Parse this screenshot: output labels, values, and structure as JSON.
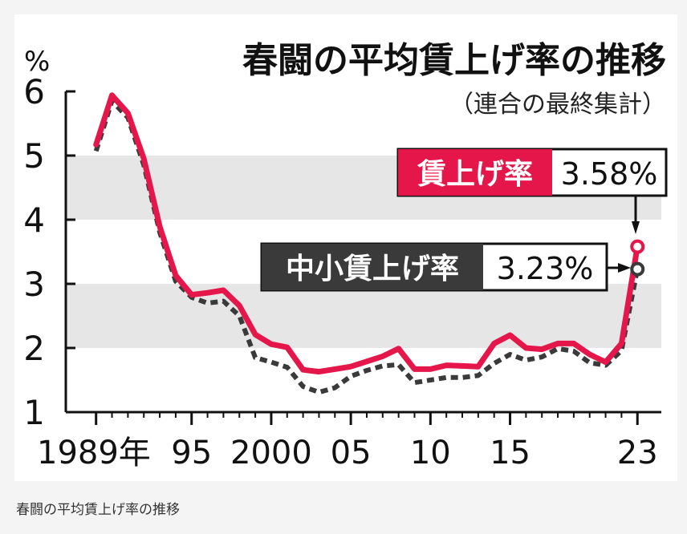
{
  "caption": "春闘の平均賃上げ率の推移",
  "colors": {
    "series_main": "#e5174a",
    "series_small": "#3a3a3a",
    "band": "#e6e6e6",
    "background": "#ffffff"
  },
  "chart_data": {
    "type": "line",
    "title": "春闘の平均賃上げ率の推移",
    "subtitle": "（連合の最終集計）",
    "ylabel": "%",
    "ylim": [
      1,
      6
    ],
    "xlim": [
      1989,
      2023
    ],
    "grid": "alternating horizontal bands",
    "yticks": [
      "1",
      "2",
      "3",
      "4",
      "5",
      "6"
    ],
    "xticks": [
      {
        "x": 1989,
        "label": "1989年"
      },
      {
        "x": 1995,
        "label": "95"
      },
      {
        "x": 2000,
        "label": "2000"
      },
      {
        "x": 2005,
        "label": "05"
      },
      {
        "x": 2010,
        "label": "10"
      },
      {
        "x": 2015,
        "label": "15"
      },
      {
        "x": 2023,
        "label": "23"
      }
    ],
    "x": [
      1989,
      1990,
      1991,
      1992,
      1993,
      1994,
      1995,
      1996,
      1997,
      1998,
      1999,
      2000,
      2001,
      2002,
      2003,
      2004,
      2005,
      2006,
      2007,
      2008,
      2009,
      2010,
      2011,
      2012,
      2013,
      2014,
      2015,
      2016,
      2017,
      2018,
      2019,
      2020,
      2021,
      2022,
      2023
    ],
    "series": [
      {
        "name": "賃上げ率",
        "style": "solid",
        "values": [
          5.17,
          5.94,
          5.66,
          4.95,
          3.89,
          3.13,
          2.83,
          2.86,
          2.9,
          2.66,
          2.21,
          2.06,
          2.01,
          1.66,
          1.63,
          1.67,
          1.71,
          1.79,
          1.87,
          1.99,
          1.67,
          1.67,
          1.73,
          1.72,
          1.71,
          2.07,
          2.2,
          2.0,
          1.98,
          2.07,
          2.07,
          1.9,
          1.78,
          2.07,
          3.58
        ],
        "end_label": "3.58%"
      },
      {
        "name": "中小賃上げ率",
        "style": "dashed",
        "values": [
          5.07,
          5.85,
          5.59,
          4.85,
          3.8,
          3.04,
          2.79,
          2.7,
          2.73,
          2.5,
          1.85,
          1.78,
          1.7,
          1.4,
          1.31,
          1.38,
          1.56,
          1.65,
          1.72,
          1.74,
          1.46,
          1.5,
          1.54,
          1.54,
          1.57,
          1.76,
          1.9,
          1.81,
          1.86,
          1.99,
          1.95,
          1.77,
          1.73,
          1.96,
          3.23
        ],
        "end_label": "3.23%"
      }
    ]
  }
}
